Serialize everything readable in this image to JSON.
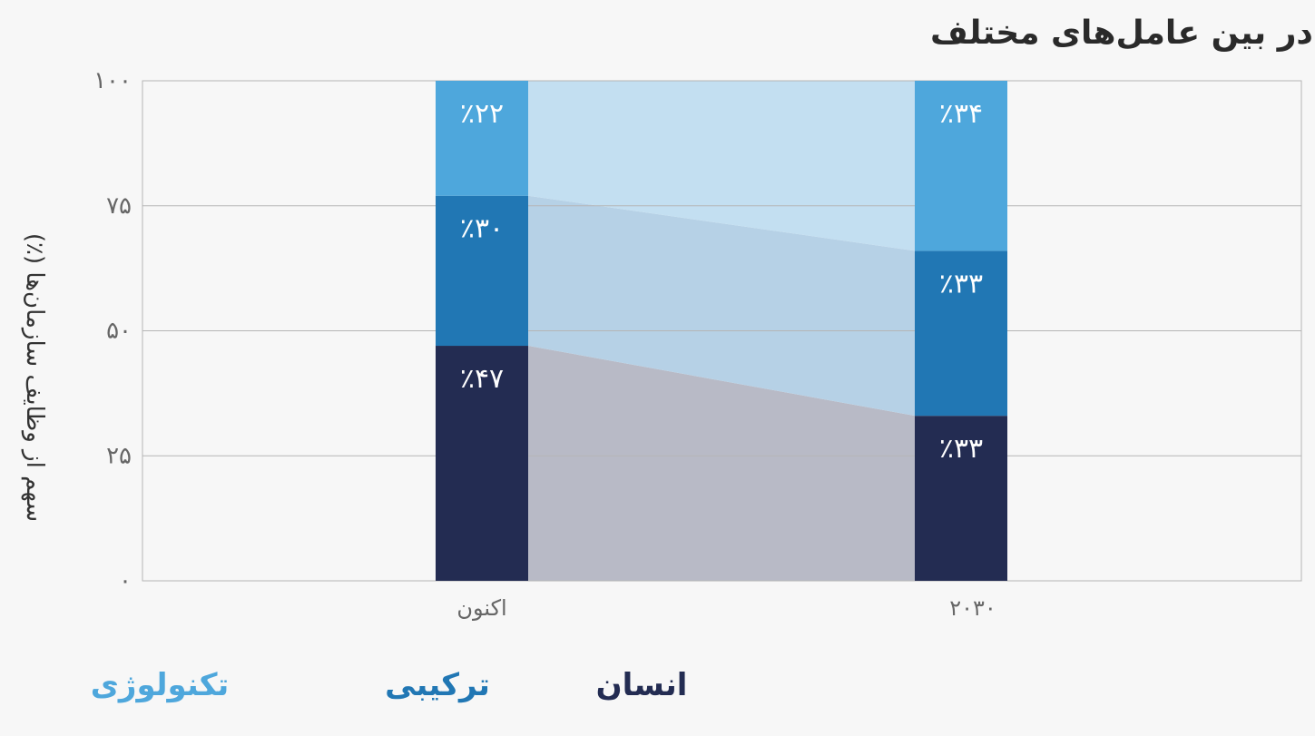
{
  "chart_data": {
    "type": "bar",
    "title": "توزیع وظایف سازمانی در بین عامل‌های مختلف",
    "ylabel": "سهم از وظایف سازمان‌ها (٪)",
    "xlabel": "",
    "ylim": [
      0,
      100
    ],
    "yticks": [
      {
        "value": 0,
        "label": "۰"
      },
      {
        "value": 25,
        "label": "۲۵"
      },
      {
        "value": 50,
        "label": "۵۰"
      },
      {
        "value": 75,
        "label": "۷۵"
      },
      {
        "value": 100,
        "label": "۱۰۰"
      }
    ],
    "grid": true,
    "stacked": true,
    "categories": [
      "اکنون",
      "۲۰۳۰"
    ],
    "series": [
      {
        "name": "انسان",
        "values": [
          47,
          33
        ],
        "labels": [
          "٪۴۷",
          "٪۳۳"
        ],
        "color": "#232c52",
        "band_color": "#b8bac6"
      },
      {
        "name": "ترکیبی",
        "values": [
          30,
          33
        ],
        "labels": [
          "٪۳۰",
          "٪۳۳"
        ],
        "color": "#2177b4",
        "band_color": "#b6d1e6"
      },
      {
        "name": "تکنولوژی",
        "values": [
          22,
          34
        ],
        "labels": [
          "٪۲۲",
          "٪۳۴"
        ],
        "color": "#4ea7dc",
        "band_color": "#c3dff1"
      }
    ],
    "legend_position": "bottom"
  }
}
